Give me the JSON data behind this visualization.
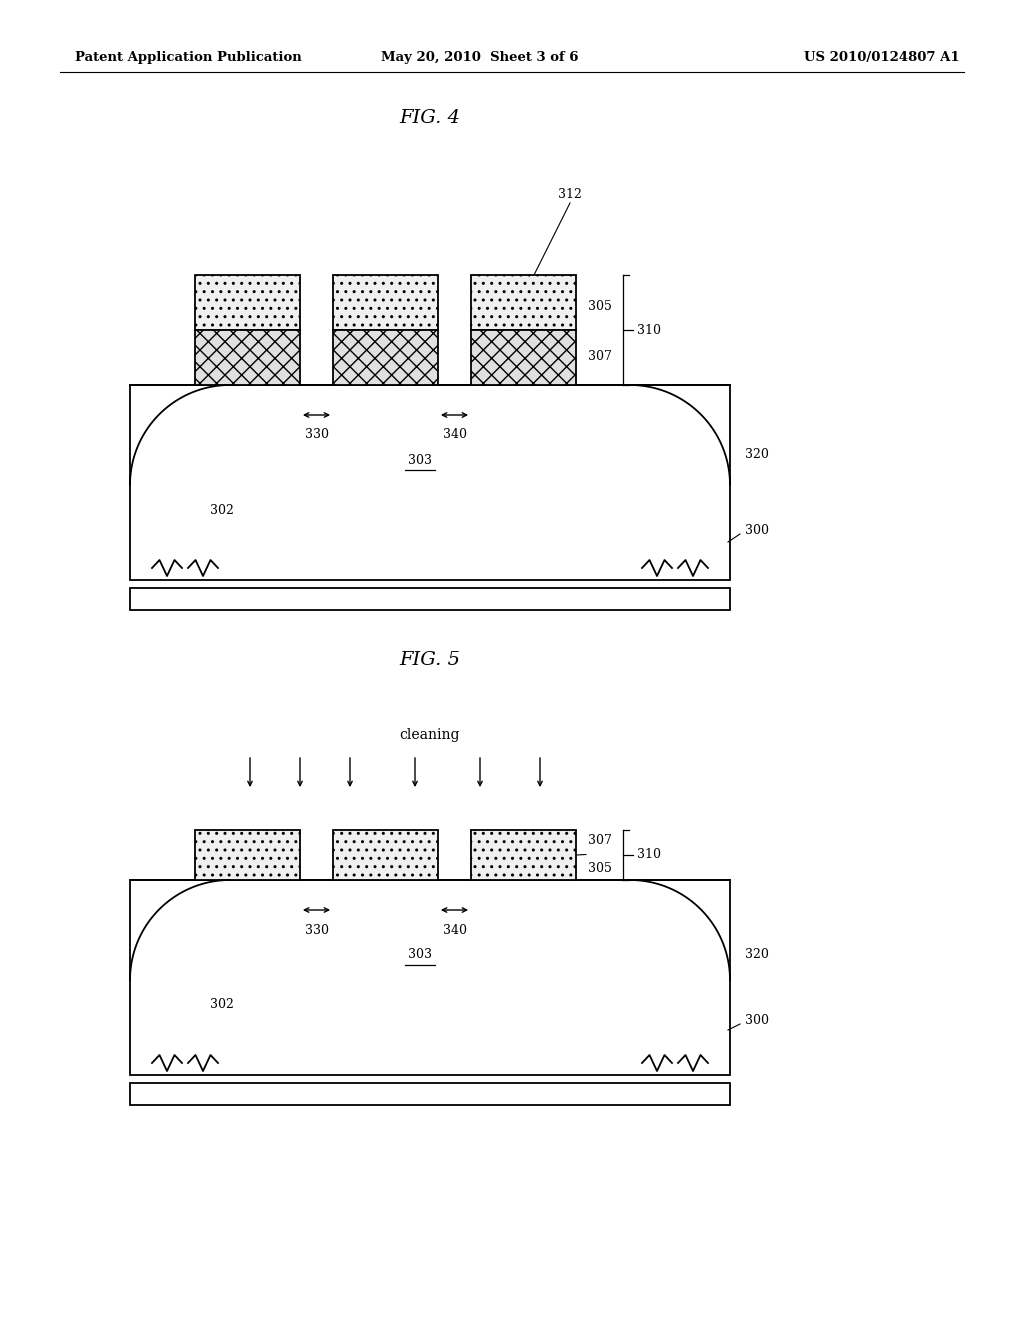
{
  "header_left": "Patent Application Publication",
  "header_mid": "May 20, 2010  Sheet 3 of 6",
  "header_right": "US 2010/0124807 A1",
  "fig4_title": "FIG. 4",
  "fig5_title": "FIG. 5",
  "bg_color": "#ffffff",
  "line_color": "#000000"
}
